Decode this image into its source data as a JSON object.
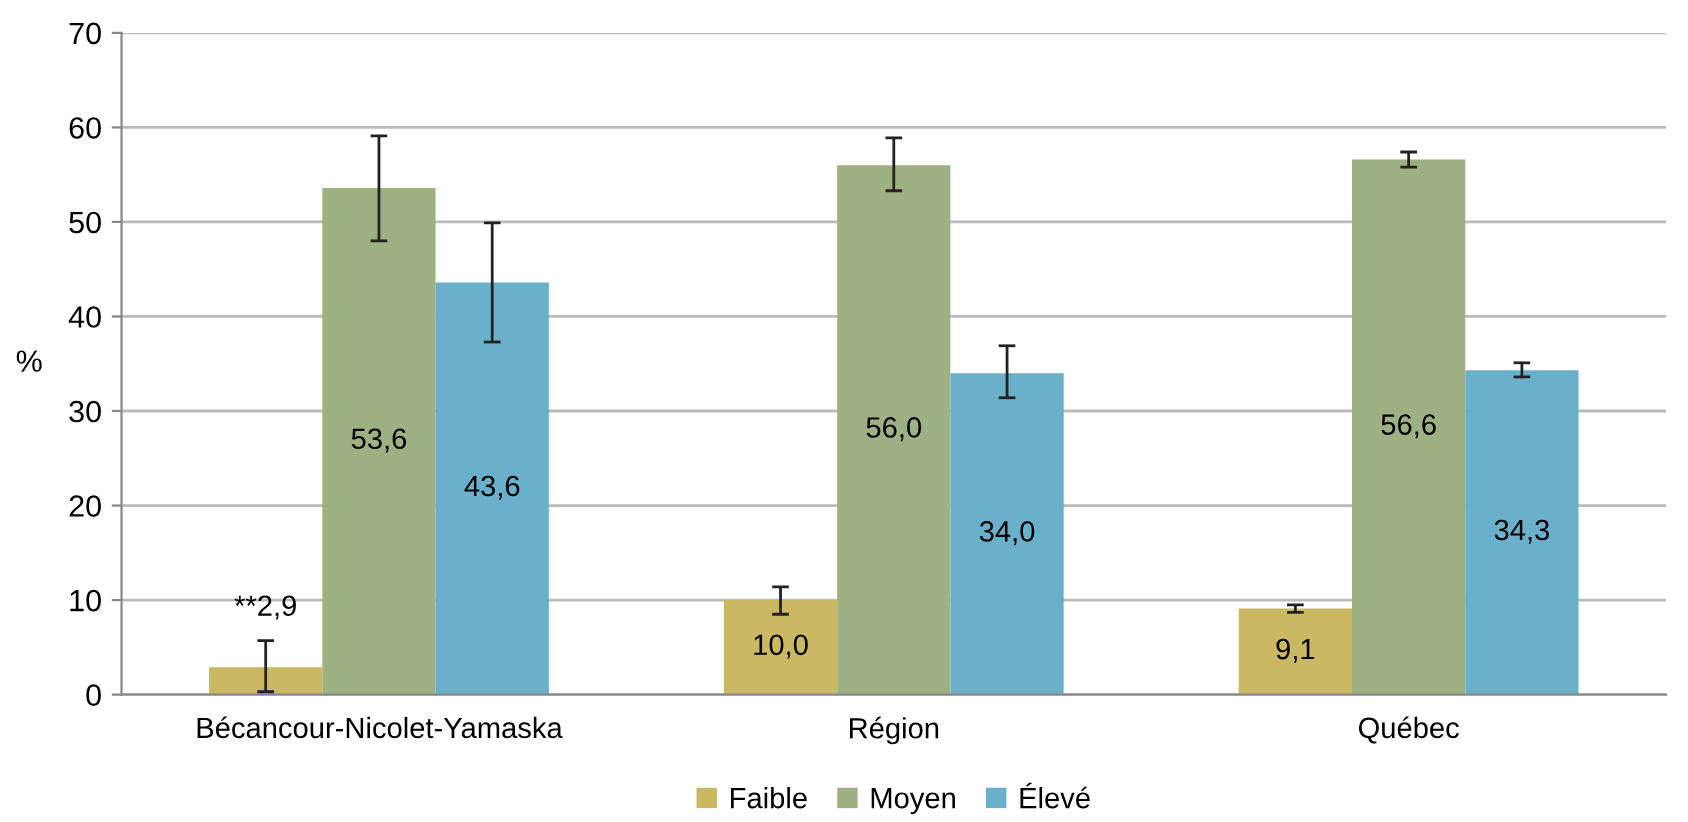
{
  "chart_data": {
    "type": "bar",
    "ylabel": "%",
    "categories": [
      "Bécancour-Nicolet-Yamaska",
      "Région",
      "Québec"
    ],
    "ylim": [
      0,
      70
    ],
    "yticks": [
      0,
      10,
      20,
      30,
      40,
      50,
      60,
      70
    ],
    "grid": "y",
    "legend": "bottom",
    "series": [
      {
        "name": "Faible",
        "color": "#cbb862",
        "values": [
          2.9,
          10.0,
          9.1
        ],
        "errors": [
          [
            0.3,
            5.7
          ],
          [
            8.5,
            11.4
          ],
          [
            8.7,
            9.5
          ]
        ],
        "value_labels": [
          "**2,9",
          "10,0",
          "9,1"
        ]
      },
      {
        "name": "Moyen",
        "color": "#9db182",
        "values": [
          53.6,
          56.0,
          56.6
        ],
        "errors": [
          [
            48.0,
            59.1
          ],
          [
            53.3,
            58.9
          ],
          [
            55.8,
            57.4
          ]
        ],
        "value_labels": [
          "53,6",
          "56,0",
          "56,6"
        ]
      },
      {
        "name": "Élevé",
        "color": "#6bb0cb",
        "values": [
          43.6,
          34.0,
          34.3
        ],
        "errors": [
          [
            37.3,
            49.9
          ],
          [
            31.4,
            36.9
          ],
          [
            33.6,
            35.1
          ]
        ],
        "value_labels": [
          "43,6",
          "34,0",
          "34,3"
        ]
      }
    ]
  }
}
